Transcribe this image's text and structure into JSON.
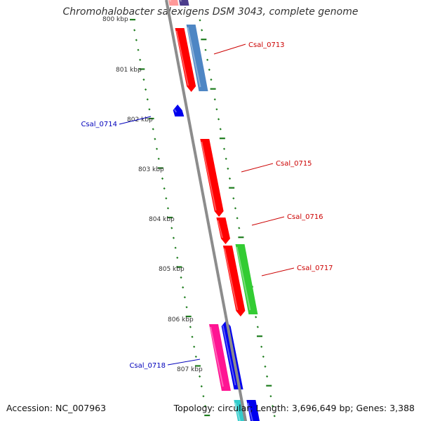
{
  "title": "Chromohalobacter salexigens DSM 3043, complete genome",
  "accession_text": "Accession: NC_007963",
  "stats_text": "Topology: circular; Length: 3,696,649 bp; Genes: 3,388",
  "scale": {
    "unit": "kbp",
    "labels": [
      {
        "kbp": 800,
        "text": "800 kbp"
      },
      {
        "kbp": 801,
        "text": "801 kbp"
      },
      {
        "kbp": 802,
        "text": "802 kbp"
      },
      {
        "kbp": 803,
        "text": "803 kbp"
      },
      {
        "kbp": 804,
        "text": "804 kbp"
      },
      {
        "kbp": 805,
        "text": "805 kbp"
      },
      {
        "kbp": 806,
        "text": "806 kbp"
      },
      {
        "kbp": 807,
        "text": "807 kbp"
      }
    ]
  },
  "genes": [
    {
      "label": "Csal_0713",
      "label_color": "#cc0000"
    },
    {
      "label": "Csal_0714",
      "label_color": "#0000bb"
    },
    {
      "label": "Csal_0715",
      "label_color": "#cc0000"
    },
    {
      "label": "Csal_0716",
      "label_color": "#cc0000"
    },
    {
      "label": "Csal_0717",
      "label_color": "#cc0000"
    },
    {
      "label": "Csal_0718",
      "label_color": "#0000bb"
    }
  ],
  "colors": {
    "backbone": "#8c8c8c",
    "tick": "#1e7d1e",
    "red": "#ff0000",
    "steelblue": "#4e86c4",
    "green": "#33cc33",
    "blue": "#0000ee",
    "magenta": "#ff1493",
    "purple": "#4b3c8c",
    "cyan": "#33cccc",
    "pink": "#ff9999"
  }
}
